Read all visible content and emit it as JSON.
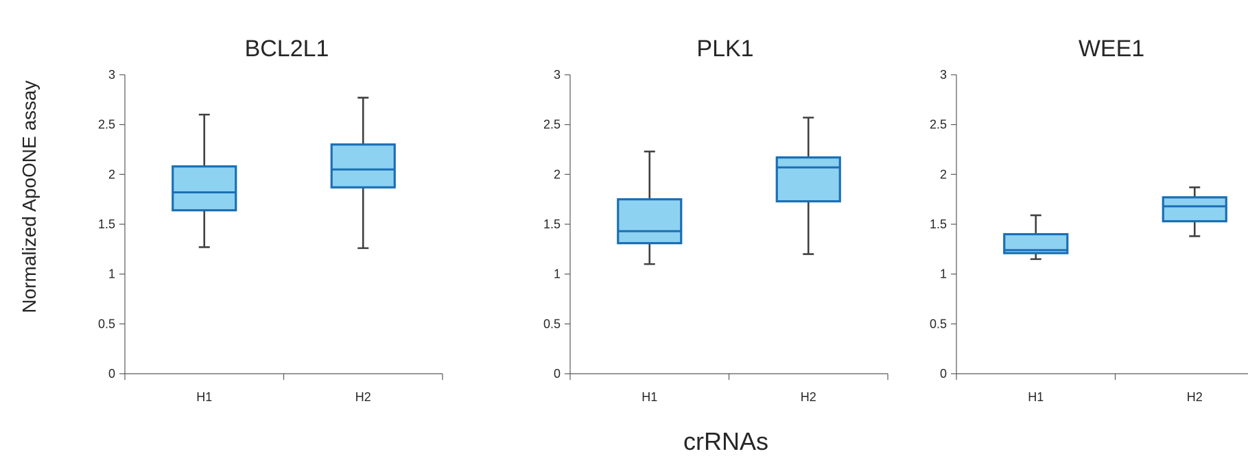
{
  "figure": {
    "ylabel": "Normalized ApoONE assay",
    "xlabel": "crRNAs"
  },
  "chart_data": [
    {
      "type": "box",
      "title": "BCL2L1",
      "categories": [
        "H1",
        "H2"
      ],
      "ylim": [
        0,
        3
      ],
      "yticks": [
        "0",
        "0.5",
        "1",
        "1.5",
        "2",
        "2.5",
        "3"
      ],
      "boxes": [
        {
          "category": "H1",
          "min": 1.27,
          "q1": 1.64,
          "median": 1.82,
          "q3": 2.08,
          "max": 2.6
        },
        {
          "category": "H2",
          "min": 1.26,
          "q1": 1.87,
          "median": 2.05,
          "q3": 2.3,
          "max": 2.77
        }
      ],
      "colors": {
        "fill": "#8ed2f2",
        "edge": "#1a6fb5",
        "whisker": "#404040"
      }
    },
    {
      "type": "box",
      "title": "PLK1",
      "categories": [
        "H1",
        "H2"
      ],
      "ylim": [
        0,
        3
      ],
      "yticks": [
        "0",
        "0.5",
        "1",
        "1.5",
        "2",
        "2.5",
        "3"
      ],
      "boxes": [
        {
          "category": "H1",
          "min": 1.1,
          "q1": 1.31,
          "median": 1.43,
          "q3": 1.75,
          "max": 2.23
        },
        {
          "category": "H2",
          "min": 1.2,
          "q1": 1.73,
          "median": 2.07,
          "q3": 2.17,
          "max": 2.57
        }
      ],
      "colors": {
        "fill": "#8ed2f2",
        "edge": "#1a6fb5",
        "whisker": "#404040"
      }
    },
    {
      "type": "box",
      "title": "WEE1",
      "categories": [
        "H1",
        "H2"
      ],
      "ylim": [
        0,
        3
      ],
      "yticks": [
        "0",
        "0.5",
        "1",
        "1.5",
        "2",
        "2.5",
        "3"
      ],
      "boxes": [
        {
          "category": "H1",
          "min": 1.15,
          "q1": 1.21,
          "median": 1.24,
          "q3": 1.4,
          "max": 1.59
        },
        {
          "category": "H2",
          "min": 1.38,
          "q1": 1.53,
          "median": 1.68,
          "q3": 1.77,
          "max": 1.87
        }
      ],
      "colors": {
        "fill": "#8ed2f2",
        "edge": "#1a6fb5",
        "whisker": "#404040"
      }
    }
  ]
}
